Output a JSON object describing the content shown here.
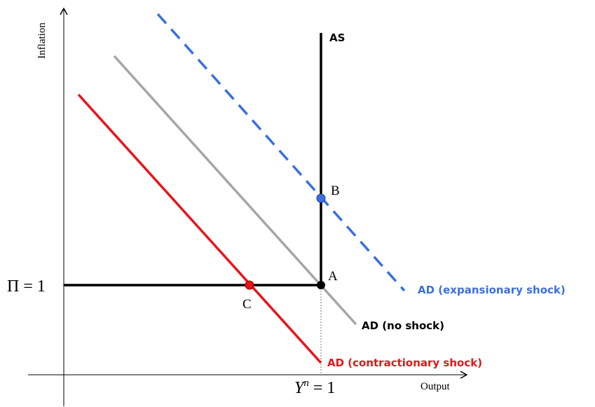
{
  "axes": {
    "y_label": "Inflation",
    "x_label": "Output"
  },
  "curves": {
    "as": "AS",
    "ad_expansionary": "AD (expansionary shock)",
    "ad_no_shock": "AD (no shock)",
    "ad_contractionary": "AD (contractionary shock)"
  },
  "points": {
    "a": "A",
    "b": "B",
    "c": "C"
  },
  "markers": {
    "pi": "Π = 1",
    "yn": {
      "symbol": "Y",
      "superscript": "n",
      "rest": " = 1"
    }
  }
}
